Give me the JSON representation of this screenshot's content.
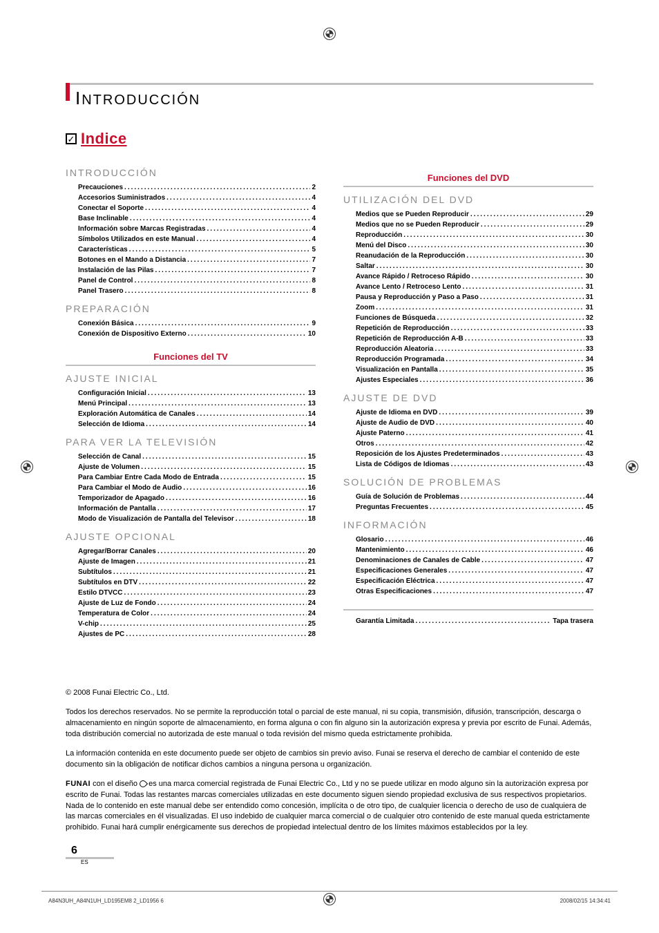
{
  "colors": {
    "accent": "#c8102e",
    "grey_bar": "#bfbfbf",
    "section_title": "#8a8a8a",
    "band_text": "#c8102e",
    "band_underline": "#bfbfbf"
  },
  "header": {
    "first_letter": "I",
    "rest": "NTRODUCCIÓN",
    "indice_label": "Indice",
    "check_symbol": "✓"
  },
  "left_column": {
    "sections": [
      {
        "title": "INTRODUCCIÓN",
        "entries": [
          {
            "label": "Precauciones",
            "page": "2"
          },
          {
            "label": "Accesorios Suministrados",
            "page": "4"
          },
          {
            "label": "Conectar el Soporte",
            "page": "4"
          },
          {
            "label": "Base Inclinable",
            "page": "4"
          },
          {
            "label": "Información sobre Marcas Registradas",
            "page": "4"
          },
          {
            "label": "Símbolos Utilizados en este Manual",
            "page": "4"
          },
          {
            "label": "Características",
            "page": "5"
          },
          {
            "label": "Botones en el Mando a Distancia",
            "page": "7"
          },
          {
            "label": "Instalación de las Pilas",
            "page": "7"
          },
          {
            "label": "Panel de Control",
            "page": "8"
          },
          {
            "label": "Panel Trasero",
            "page": "8"
          }
        ]
      },
      {
        "title": "PREPARACIÓN",
        "entries": [
          {
            "label": "Conexión Básica",
            "page": "9"
          },
          {
            "label": "Conexión de Dispositivo Externo",
            "page": "10"
          }
        ]
      }
    ],
    "band": "Funciones del TV",
    "sections_after": [
      {
        "title": "AJUSTE INICIAL",
        "entries": [
          {
            "label": "Configuración Inicial",
            "page": "13"
          },
          {
            "label": "Menú Principal",
            "page": "13"
          },
          {
            "label": "Exploración Automática de Canales",
            "page": "14"
          },
          {
            "label": "Selección de Idioma",
            "page": "14"
          }
        ]
      },
      {
        "title": "PARA VER LA TELEVISIÓN",
        "entries": [
          {
            "label": "Selección de Canal",
            "page": "15"
          },
          {
            "label": "Ajuste de Volumen",
            "page": "15"
          },
          {
            "label": "Para Cambiar Entre Cada Modo de Entrada",
            "page": "15"
          },
          {
            "label": "Para Cambiar el Modo de Audio",
            "page": "16"
          },
          {
            "label": "Temporizador de Apagado",
            "page": "16"
          },
          {
            "label": "Información de Pantalla",
            "page": "17"
          },
          {
            "label": "Modo de Visualización de Pantalla del Televisor",
            "page": "18"
          }
        ]
      },
      {
        "title": "AJUSTE OPCIONAL",
        "entries": [
          {
            "label": "Agregar/Borrar Canales",
            "page": "20"
          },
          {
            "label": "Ajuste de Imagen",
            "page": "21"
          },
          {
            "label": "Subtítulos",
            "page": "21"
          },
          {
            "label": "Subtítulos en DTV",
            "page": "22"
          },
          {
            "label": "Estilo DTVCC",
            "page": "23"
          },
          {
            "label": "Ajuste de Luz de Fondo",
            "page": "24"
          },
          {
            "label": "Temperatura de Color",
            "page": "24"
          },
          {
            "label": "V-chip",
            "page": "25"
          },
          {
            "label": "Ajustes de PC",
            "page": "28"
          }
        ]
      }
    ]
  },
  "right_column": {
    "band": "Funciones del DVD",
    "sections": [
      {
        "title": "UTILIZACIÓN DEL DVD",
        "entries": [
          {
            "label": "Medios que se Pueden Reproducir",
            "page": "29"
          },
          {
            "label": "Medios que no se Pueden Reproducir",
            "page": "29"
          },
          {
            "label": "Reproducción",
            "page": "30"
          },
          {
            "label": "Menú del Disco",
            "page": "30"
          },
          {
            "label": "Reanudación de la Reproducción",
            "page": "30"
          },
          {
            "label": "Saltar",
            "page": "30"
          },
          {
            "label": "Avance Rápido / Retroceso Rápido",
            "page": "30"
          },
          {
            "label": "Avance Lento / Retroceso Lento",
            "page": "31"
          },
          {
            "label": "Pausa y Reproducción y Paso a Paso",
            "page": "31"
          },
          {
            "label": "Zoom",
            "page": "31"
          },
          {
            "label": "Funciones de Búsqueda",
            "page": "32"
          },
          {
            "label": "Repetición de Reproducción",
            "page": "33"
          },
          {
            "label": "Repetición de Reproducción A-B",
            "page": "33"
          },
          {
            "label": "Reproducción Aleatoria",
            "page": "33"
          },
          {
            "label": "Reproducción Programada",
            "page": "34"
          },
          {
            "label": "Visualización en Pantalla",
            "page": "35"
          },
          {
            "label": "Ajustes Especiales",
            "page": "36"
          }
        ]
      },
      {
        "title": "AJUSTE DE DVD",
        "entries": [
          {
            "label": "Ajuste de Idioma en DVD",
            "page": "39"
          },
          {
            "label": "Ajuste de Audio de DVD",
            "page": "40"
          },
          {
            "label": "Ajuste Paterno",
            "page": "41"
          },
          {
            "label": "Otros",
            "page": "42"
          },
          {
            "label": "Reposición de los Ajustes Predeterminados",
            "page": "43"
          },
          {
            "label": "Lista de Códigos de Idiomas",
            "page": "43"
          }
        ]
      },
      {
        "title": "SOLUCIÓN DE PROBLEMAS",
        "entries": [
          {
            "label": "Guía de Solución de Problemas",
            "page": "44"
          },
          {
            "label": "Preguntas Frecuentes",
            "page": "45"
          }
        ]
      },
      {
        "title": "INFORMACIÓN",
        "entries": [
          {
            "label": "Glosario",
            "page": "46"
          },
          {
            "label": "Mantenimiento",
            "page": "46"
          },
          {
            "label": "Denominaciones de Canales de Cable",
            "page": "47"
          },
          {
            "label": "Especificaciones Generales",
            "page": "47"
          },
          {
            "label": "Especificación Eléctrica",
            "page": "47"
          },
          {
            "label": "Otras Especificaciones",
            "page": "47"
          }
        ]
      }
    ],
    "warranty": {
      "label": "Garantía Limitada",
      "page": "Tapa trasera"
    }
  },
  "copyright": {
    "line1": "© 2008 Funai Electric Co., Ltd.",
    "para1": "Todos los derechos reservados. No se permite la reproducción total o parcial de este manual, ni su copia, transmisión, difusión, transcripción, descarga o almacenamiento en ningún soporte de almacenamiento, en forma alguna o con fin alguno sin la autorización expresa y previa por escrito de Funai. Además, toda distribución comercial no autorizada de este manual o toda revisión del mismo queda estrictamente prohibida.",
    "para2": "La información contenida en este documento puede ser objeto de cambios sin previo aviso. Funai se reserva el derecho de cambiar el contenido de este documento sin la obligación de notificar dichos cambios a ninguna persona u organización.",
    "para3a": "FUNAI",
    "para3b": " con el diseño ",
    "para3c": " es una marca comercial registrada de Funai Electric Co., Ltd y no se puede utilizar en modo alguno sin la autorización expresa por escrito de Funai. Todas las restantes marcas comerciales utilizadas en este documento siguen siendo propiedad exclusiva de sus respectivos propietarios. Nada de lo contenido en este manual debe ser entendido como concesión, implícita o de otro tipo, de cualquier licencia o derecho de uso de cualquiera de las marcas comerciales en él visualizadas. El uso indebido de cualquier marca comercial o de cualquier otro contenido de este manual queda estrictamente prohibido. Funai hará cumplir enérgicamente sus derechos de propiedad intelectual dentro de los límites máximos establecidos por la ley."
  },
  "page_number": "6",
  "page_lang": "ES",
  "footer": {
    "left": "A84N3UH_A84N1UH_LD195EM8 2_LD1956   6",
    "right": "2008/02/15   14:34:41"
  }
}
